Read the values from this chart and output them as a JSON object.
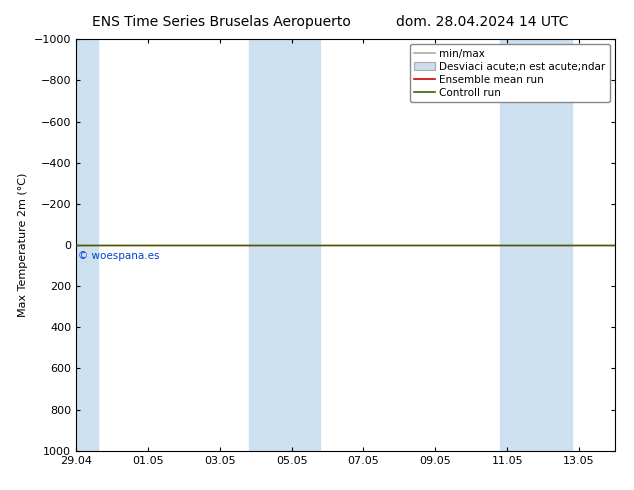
{
  "title_left": "ENS Time Series Bruselas Aeropuerto",
  "title_right": "dom. 28.04.2024 14 UTC",
  "ylabel": "Max Temperature 2m (°C)",
  "ylim_bottom": 1000,
  "ylim_top": -1000,
  "yticks": [
    -1000,
    -800,
    -600,
    -400,
    -200,
    0,
    200,
    400,
    600,
    800,
    1000
  ],
  "xtick_labels": [
    "29.04",
    "01.05",
    "03.05",
    "05.05",
    "07.05",
    "09.05",
    "11.05",
    "13.05"
  ],
  "xtick_positions": [
    0,
    2,
    4,
    6,
    8,
    10,
    12,
    14
  ],
  "xlim": [
    0,
    15
  ],
  "background_color": "#ffffff",
  "plot_bg_color": "#ffffff",
  "band_color": "#cce0f0",
  "band_positions": [
    {
      "start": -0.1,
      "end": 0.6
    },
    {
      "start": 4.8,
      "end": 6.8
    },
    {
      "start": 11.8,
      "end": 13.8
    }
  ],
  "green_line_y": 0,
  "green_line_color": "#336600",
  "red_line_color": "#cc0000",
  "copyright_text": "© woespana.es",
  "legend_label_minmax": "min/max",
  "legend_label_std": "Desviaci acute;n est acute;ndar",
  "legend_label_ens": "Ensemble mean run",
  "legend_label_ctrl": "Controll run",
  "font_size_title": 10,
  "font_size_axis": 8,
  "font_size_legend": 7.5,
  "font_size_ylabel": 8
}
